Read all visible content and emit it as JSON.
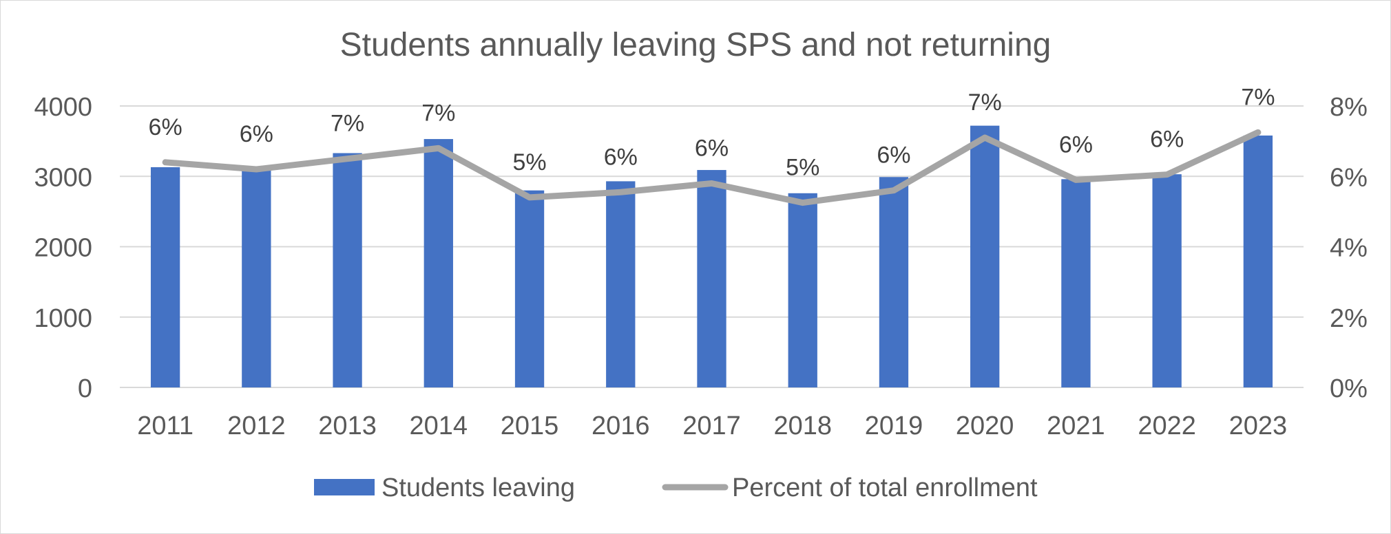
{
  "chart_data": {
    "type": "bar",
    "title": "Students annually leaving SPS and not returning",
    "categories": [
      "2011",
      "2012",
      "2013",
      "2014",
      "2015",
      "2016",
      "2017",
      "2018",
      "2019",
      "2020",
      "2021",
      "2022",
      "2023"
    ],
    "series": [
      {
        "name": "Students leaving",
        "type": "bar",
        "axis": "left",
        "color": "#4472c4",
        "values": [
          3130,
          3100,
          3330,
          3530,
          2800,
          2930,
          3090,
          2760,
          2990,
          3720,
          2960,
          3030,
          3580
        ]
      },
      {
        "name": "Percent of total enrollment",
        "type": "line",
        "axis": "right",
        "color": "#a5a5a5",
        "values": [
          6.4,
          6.2,
          6.5,
          6.8,
          5.4,
          5.55,
          5.8,
          5.25,
          5.6,
          7.1,
          5.9,
          6.05,
          7.25
        ],
        "data_labels": [
          "6%",
          "6%",
          "7%",
          "7%",
          "5%",
          "6%",
          "6%",
          "5%",
          "6%",
          "7%",
          "6%",
          "6%",
          "7%"
        ]
      }
    ],
    "y_left": {
      "ylim": [
        0,
        4000
      ],
      "ticks": [
        0,
        1000,
        2000,
        3000,
        4000
      ],
      "tick_labels": [
        "0",
        "1000",
        "2000",
        "3000",
        "4000"
      ]
    },
    "y_right": {
      "ylim": [
        0,
        8
      ],
      "ticks": [
        0,
        2,
        4,
        6,
        8
      ],
      "tick_labels": [
        "0%",
        "2%",
        "4%",
        "6%",
        "8%"
      ]
    },
    "grid": true,
    "legend_placement": "bottom",
    "colors": {
      "text": "#595959",
      "grid": "#d9d9d9",
      "label": "#404040"
    }
  }
}
